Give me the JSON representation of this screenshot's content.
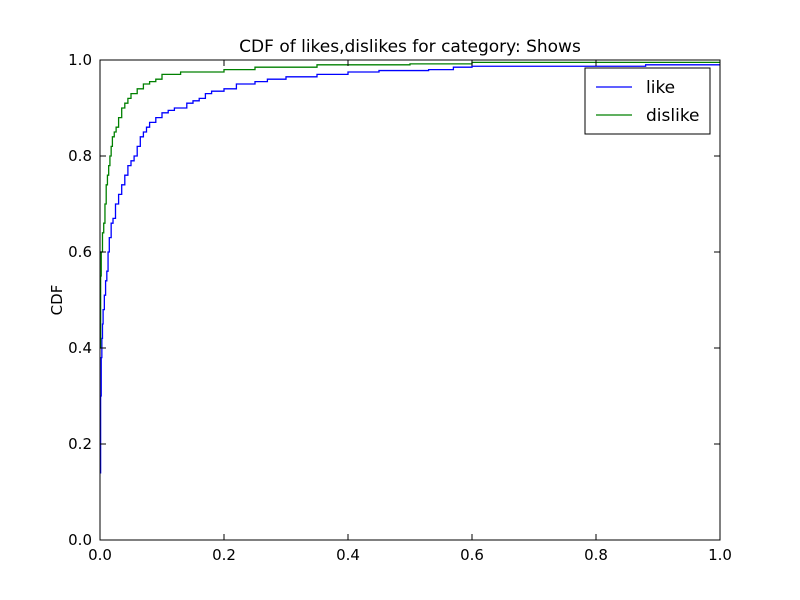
{
  "chart_data": {
    "type": "line",
    "title": "CDF of likes,dislikes for category: Shows",
    "xlabel": "",
    "ylabel": "CDF",
    "xlim": [
      0.0,
      1.0
    ],
    "ylim": [
      0.0,
      1.0
    ],
    "xticks": [
      "0.0",
      "0.2",
      "0.4",
      "0.6",
      "0.8",
      "1.0"
    ],
    "yticks": [
      "0.0",
      "0.2",
      "0.4",
      "0.6",
      "0.8",
      "1.0"
    ],
    "grid": false,
    "legend_position": "top-right",
    "series": [
      {
        "name": "like",
        "color": "#0000ff",
        "step": true,
        "x": [
          0.0,
          0.001,
          0.002,
          0.003,
          0.004,
          0.005,
          0.007,
          0.009,
          0.011,
          0.013,
          0.015,
          0.018,
          0.021,
          0.025,
          0.03,
          0.035,
          0.04,
          0.045,
          0.05,
          0.055,
          0.06,
          0.065,
          0.07,
          0.075,
          0.08,
          0.09,
          0.1,
          0.11,
          0.12,
          0.14,
          0.15,
          0.16,
          0.17,
          0.18,
          0.2,
          0.22,
          0.25,
          0.27,
          0.3,
          0.35,
          0.4,
          0.45,
          0.53,
          0.57,
          0.6,
          0.88,
          1.0
        ],
        "y": [
          0.14,
          0.3,
          0.38,
          0.42,
          0.45,
          0.48,
          0.51,
          0.54,
          0.56,
          0.6,
          0.63,
          0.66,
          0.67,
          0.7,
          0.72,
          0.74,
          0.76,
          0.78,
          0.79,
          0.8,
          0.82,
          0.84,
          0.85,
          0.86,
          0.87,
          0.88,
          0.89,
          0.895,
          0.9,
          0.91,
          0.915,
          0.92,
          0.93,
          0.935,
          0.94,
          0.95,
          0.955,
          0.96,
          0.965,
          0.97,
          0.975,
          0.978,
          0.98,
          0.985,
          0.987,
          0.99,
          0.99
        ]
      },
      {
        "name": "dislike",
        "color": "#008000",
        "step": true,
        "x": [
          0.0,
          0.001,
          0.002,
          0.004,
          0.006,
          0.008,
          0.01,
          0.012,
          0.014,
          0.016,
          0.018,
          0.02,
          0.023,
          0.026,
          0.03,
          0.035,
          0.04,
          0.045,
          0.05,
          0.06,
          0.07,
          0.08,
          0.09,
          0.1,
          0.13,
          0.2,
          0.25,
          0.35,
          0.5,
          0.6,
          1.0
        ],
        "y": [
          0.4,
          0.55,
          0.6,
          0.64,
          0.66,
          0.7,
          0.74,
          0.76,
          0.78,
          0.8,
          0.82,
          0.84,
          0.85,
          0.86,
          0.88,
          0.9,
          0.91,
          0.92,
          0.93,
          0.94,
          0.95,
          0.955,
          0.96,
          0.97,
          0.975,
          0.98,
          0.985,
          0.99,
          0.992,
          0.995,
          0.995
        ]
      }
    ]
  }
}
